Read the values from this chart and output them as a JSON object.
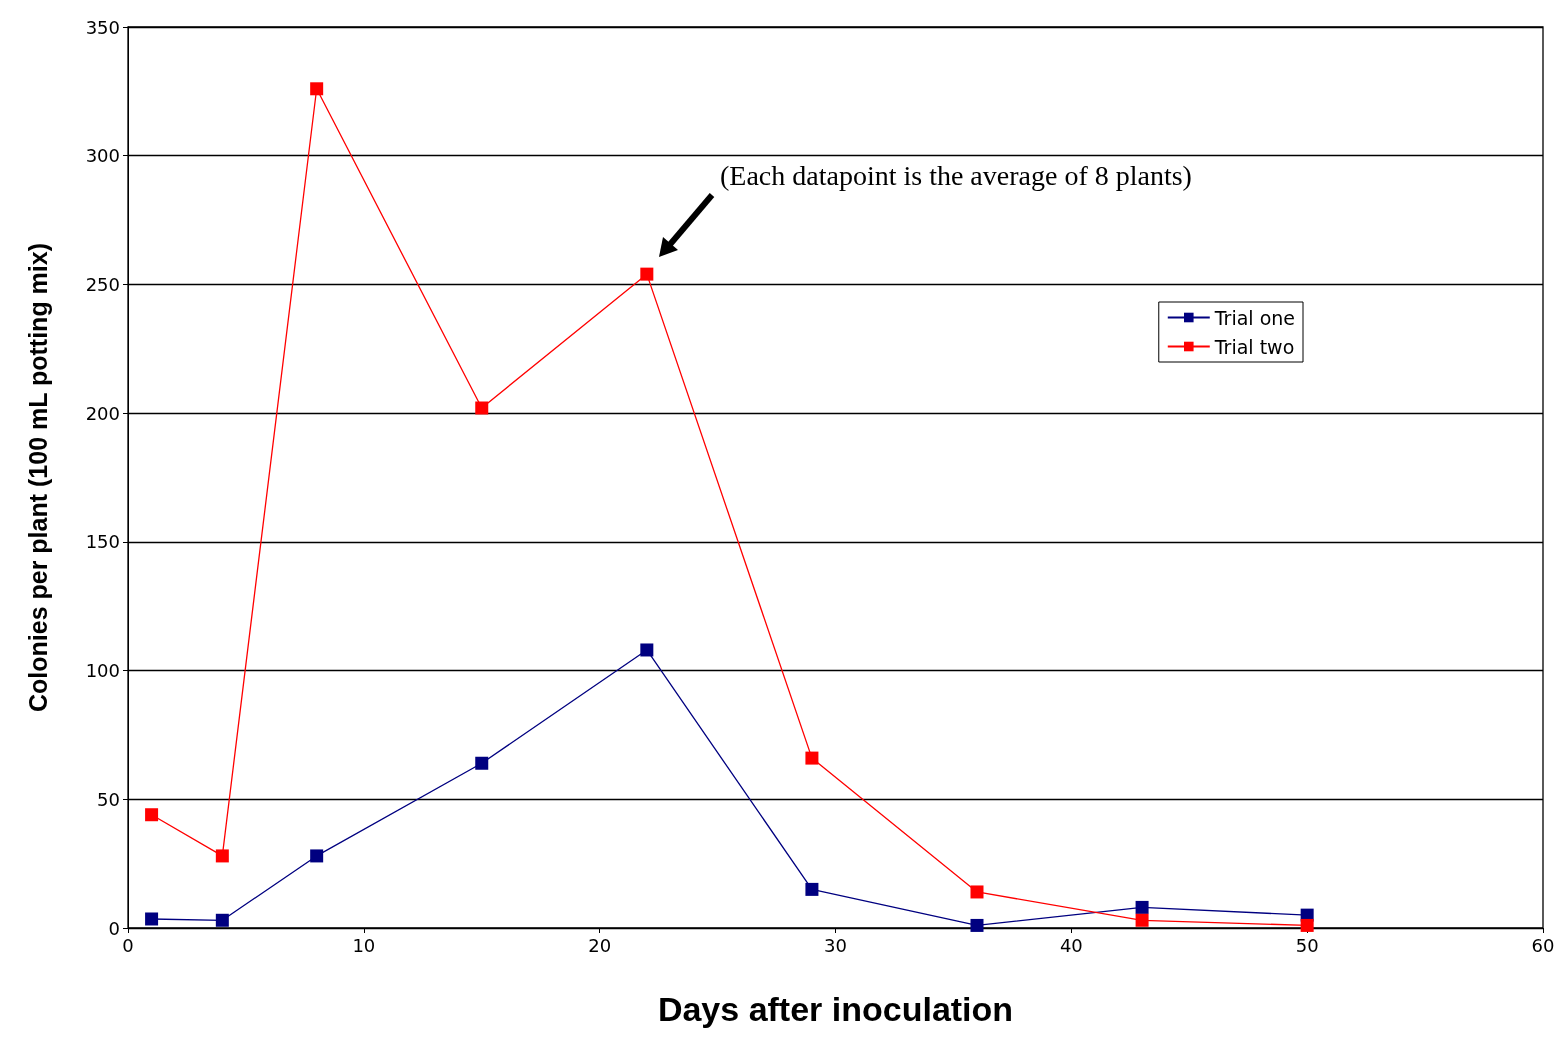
{
  "chart_data": {
    "type": "line",
    "xlabel": "Days after inoculation",
    "ylabel": "Colonies per plant (100 mL potting mix)",
    "x": [
      1,
      4,
      8,
      15,
      22,
      29,
      36,
      43,
      50
    ],
    "series": [
      {
        "name": "Trial one",
        "color": "#000080",
        "values": [
          3.5,
          3,
          28,
          64,
          108,
          15,
          1,
          8,
          5
        ]
      },
      {
        "name": "Trial two",
        "color": "#ff0000",
        "values": [
          44,
          28,
          326,
          202,
          254,
          66,
          14,
          3,
          1
        ]
      }
    ],
    "xlim": [
      0,
      60
    ],
    "xticks": [
      0,
      10,
      20,
      30,
      40,
      50,
      60
    ],
    "ylim": [
      0,
      350
    ],
    "yticks": [
      0,
      50,
      100,
      150,
      200,
      250,
      300,
      350
    ],
    "grid": "y",
    "legend": "top right",
    "marker": "square",
    "line_style": "solid",
    "annotations": [
      "(Each datapoint is the average of 8 plants)"
    ]
  }
}
